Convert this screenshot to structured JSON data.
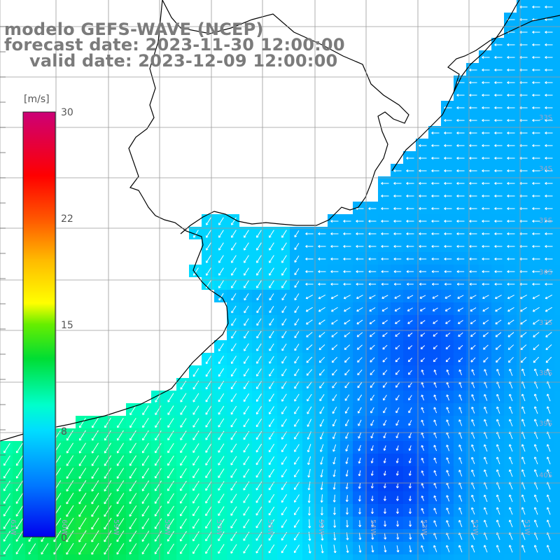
{
  "header": {
    "line1": "modelo GEFS-WAVE (NCEP)",
    "line2": "forecast date: 2023-11-30 12:00:00",
    "line3": "valid date: 2023-12-09 12:00:00"
  },
  "colorbar": {
    "unit": "[m/s]",
    "ticks": [
      "30",
      "22",
      "15",
      "8",
      "0"
    ],
    "tick_values": [
      30,
      22,
      15,
      8,
      0
    ],
    "range": [
      0,
      30
    ],
    "colors": [
      "#0000ee",
      "#0066ff",
      "#00ccff",
      "#00ffff",
      "#00ff66",
      "#00dd00",
      "#66ee00",
      "#ffff00",
      "#ffbb00",
      "#ff6600",
      "#ff0000",
      "#ee0055",
      "#cc0077"
    ]
  },
  "map": {
    "lat_labels": [
      "33S",
      "34S",
      "35S",
      "36S",
      "37S",
      "38S",
      "39S",
      "40S"
    ],
    "lon_labels": [
      "61W",
      "60W",
      "59W",
      "58W",
      "57W",
      "56W",
      "55W",
      "54W",
      "53W",
      "52W",
      "51W"
    ],
    "land_color": "#ffffff",
    "grid_color": "#9a9a9a",
    "vector_color": "#ffffff"
  }
}
